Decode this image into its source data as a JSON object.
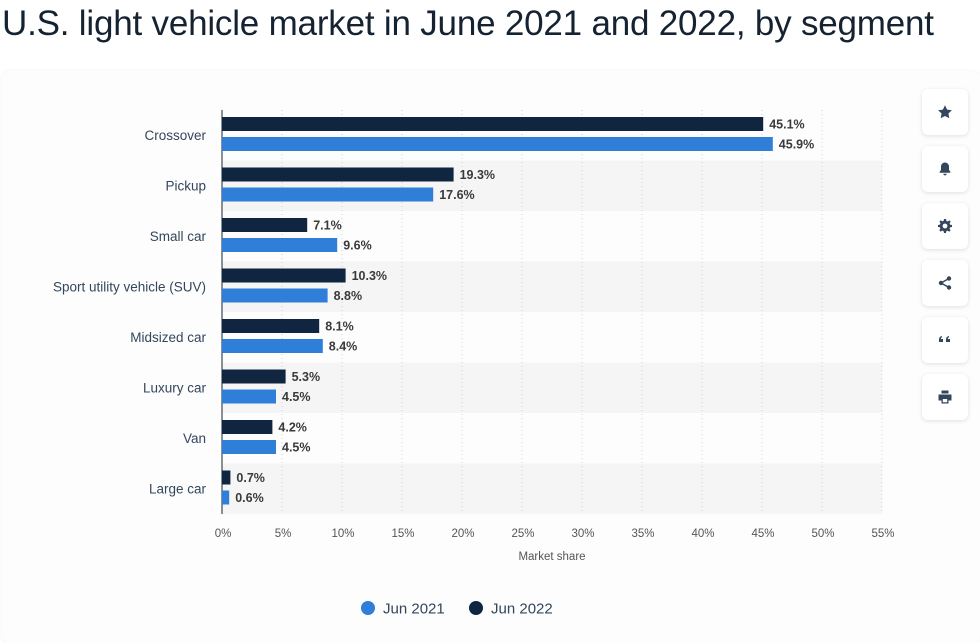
{
  "page": {
    "title": "U.S. light vehicle market in June 2021 and 2022, by segment"
  },
  "toolbar": {
    "icons": [
      "star-icon",
      "bell-icon",
      "gear-icon",
      "share-icon",
      "quote-icon",
      "print-icon"
    ]
  },
  "colors": {
    "jun2021": "#2f7ed8",
    "jun2022": "#0f2540",
    "icon": "#33465c",
    "band": "#f5f5f5",
    "grid": "#d0d0d0",
    "axis": "#152232"
  },
  "chart_data": {
    "type": "bar",
    "orientation": "horizontal",
    "categories": [
      "Crossover",
      "Pickup",
      "Small car",
      "Sport utility vehicle (SUV)",
      "Midsized car",
      "Luxury car",
      "Van",
      "Large car"
    ],
    "series": [
      {
        "name": "Jun 2022",
        "values": [
          45.1,
          19.3,
          7.1,
          10.3,
          8.1,
          5.3,
          4.2,
          0.7
        ],
        "labels": [
          "45.1%",
          "19.3%",
          "7.1%",
          "10.3%",
          "8.1%",
          "5.3%",
          "4.2%",
          "0.7%"
        ]
      },
      {
        "name": "Jun 2021",
        "values": [
          45.9,
          17.6,
          9.6,
          8.8,
          8.4,
          4.5,
          4.5,
          0.6
        ],
        "labels": [
          "45.9%",
          "17.6%",
          "9.6%",
          "8.8%",
          "8.4%",
          "4.5%",
          "4.5%",
          "0.6%"
        ]
      }
    ],
    "xlabel": "Market share",
    "xlim": [
      0,
      55
    ],
    "xticks": [
      "0%",
      "5%",
      "10%",
      "15%",
      "20%",
      "25%",
      "30%",
      "35%",
      "40%",
      "45%",
      "50%",
      "55%"
    ],
    "legend": [
      "Jun 2021",
      "Jun 2022"
    ],
    "legend_position": "bottom",
    "grid": true
  }
}
